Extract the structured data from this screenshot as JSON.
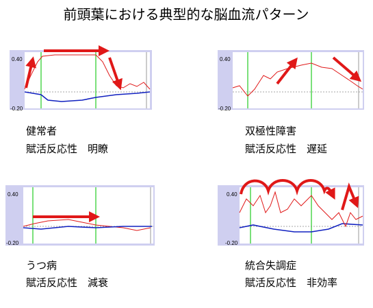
{
  "title": "前頭葉における典型的な脳血流パターン",
  "panels": [
    {
      "y_max_label": "0.40",
      "y_min_label": "-0.20",
      "group": "健常者",
      "reactivity": "賦活反応性　明瞭"
    },
    {
      "y_max_label": "0.40",
      "y_min_label": "-0.20",
      "group": "双極性障害",
      "reactivity": "賦活反応性　遅延"
    },
    {
      "y_max_label": "0.40",
      "y_min_label": "-0.20",
      "group": "うつ病",
      "reactivity": "賦活反応性　減衰"
    },
    {
      "y_max_label": "0.40",
      "y_min_label": "-0.20",
      "group": "統合失調症",
      "reactivity": "賦活反応性　非効率"
    }
  ]
}
